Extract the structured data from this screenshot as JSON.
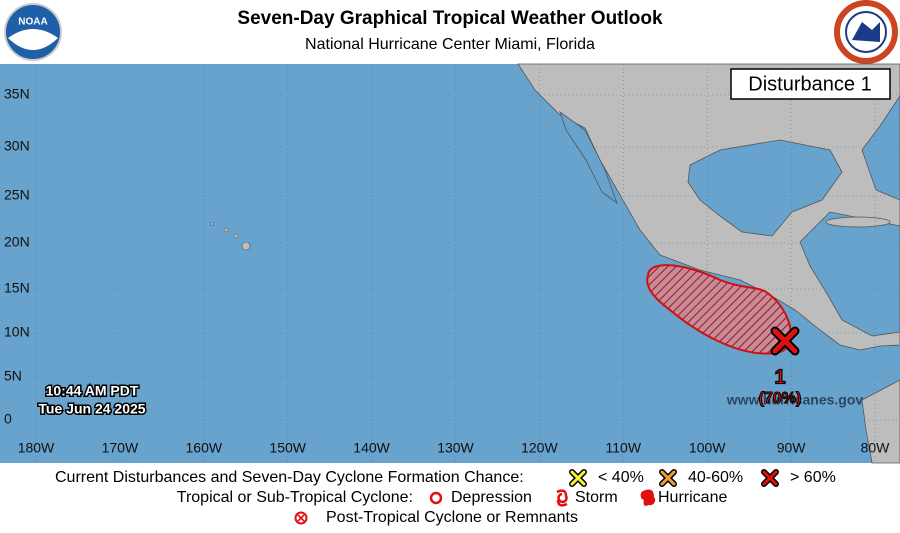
{
  "header": {
    "title": "Seven-Day Graphical Tropical Weather Outlook",
    "subtitle": "National Hurricane Center  Miami, Florida",
    "noaa_logo_text": "NOAA"
  },
  "map": {
    "box_label": "Disturbance 1",
    "lat_labels": [
      "35N",
      "30N",
      "25N",
      "20N",
      "15N",
      "10N",
      "5N",
      "0"
    ],
    "lon_labels": [
      "180W",
      "170W",
      "160W",
      "150W",
      "140W",
      "130W",
      "120W",
      "110W",
      "100W",
      "90W",
      "80W"
    ],
    "timestamp": {
      "time": "10:44 AM PDT",
      "date": "Tue Jun 24 2025"
    },
    "website": "www.hurricanes.gov",
    "disturbance": {
      "number": "1",
      "chance": "(70%)"
    }
  },
  "legend": {
    "row1": {
      "label": "Current Disturbances and Seven-Day Cyclone Formation Chance:",
      "items": [
        "< 40%",
        "40-60%",
        "> 60%"
      ]
    },
    "row2": {
      "label": "Tropical or Sub-Tropical Cyclone:",
      "items": [
        "Depression",
        "Storm",
        "Hurricane"
      ]
    },
    "row3": {
      "label": "Post-Tropical Cyclone or Remnants"
    }
  }
}
